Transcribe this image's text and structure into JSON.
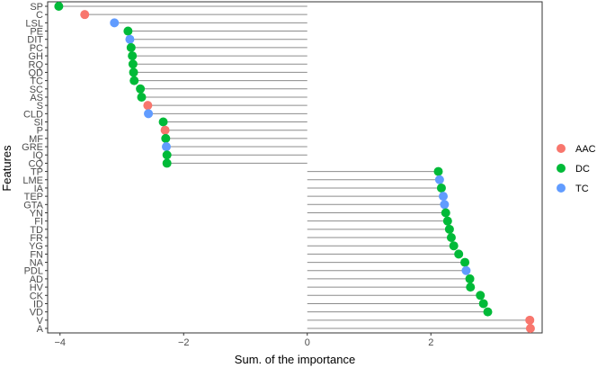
{
  "chart_data": {
    "type": "lollipop",
    "xlabel": "Sum. of the importance",
    "ylabel": "Features",
    "xlim": [
      -4.2,
      3.8
    ],
    "xticks": [
      -4,
      -2,
      0,
      2
    ],
    "xtick_labels": [
      "−4",
      "−2",
      "0",
      "2"
    ],
    "grid": false,
    "legend": {
      "position": "right",
      "entries": [
        {
          "label": "AAC",
          "color": "#F8766D"
        },
        {
          "label": "DC",
          "color": "#00BA38"
        },
        {
          "label": "TC",
          "color": "#619CFF"
        }
      ]
    },
    "points": [
      {
        "feature": "SP",
        "value": -4.02,
        "type": "DC"
      },
      {
        "feature": "C",
        "value": -3.6,
        "type": "AAC"
      },
      {
        "feature": "LSL",
        "value": -3.12,
        "type": "TC"
      },
      {
        "feature": "PE",
        "value": -2.9,
        "type": "DC"
      },
      {
        "feature": "DIT",
        "value": -2.87,
        "type": "TC"
      },
      {
        "feature": "PC",
        "value": -2.85,
        "type": "DC"
      },
      {
        "feature": "GH",
        "value": -2.83,
        "type": "DC"
      },
      {
        "feature": "RQ",
        "value": -2.82,
        "type": "DC"
      },
      {
        "feature": "QD",
        "value": -2.81,
        "type": "DC"
      },
      {
        "feature": "TC",
        "value": -2.8,
        "type": "DC"
      },
      {
        "feature": "SC",
        "value": -2.7,
        "type": "DC"
      },
      {
        "feature": "AS",
        "value": -2.68,
        "type": "DC"
      },
      {
        "feature": "S",
        "value": -2.58,
        "type": "AAC"
      },
      {
        "feature": "CLD",
        "value": -2.57,
        "type": "TC"
      },
      {
        "feature": "SI",
        "value": -2.33,
        "type": "DC"
      },
      {
        "feature": "P",
        "value": -2.3,
        "type": "AAC"
      },
      {
        "feature": "MF",
        "value": -2.29,
        "type": "DC"
      },
      {
        "feature": "GRE",
        "value": -2.28,
        "type": "TC"
      },
      {
        "feature": "IQ",
        "value": -2.27,
        "type": "DC"
      },
      {
        "feature": "CQ",
        "value": -2.27,
        "type": "DC"
      },
      {
        "feature": "TP",
        "value": 2.12,
        "type": "DC"
      },
      {
        "feature": "LME",
        "value": 2.14,
        "type": "TC"
      },
      {
        "feature": "IA",
        "value": 2.17,
        "type": "DC"
      },
      {
        "feature": "TEP",
        "value": 2.2,
        "type": "TC"
      },
      {
        "feature": "GTA",
        "value": 2.22,
        "type": "TC"
      },
      {
        "feature": "YN",
        "value": 2.24,
        "type": "DC"
      },
      {
        "feature": "FI",
        "value": 2.27,
        "type": "DC"
      },
      {
        "feature": "TD",
        "value": 2.3,
        "type": "DC"
      },
      {
        "feature": "FR",
        "value": 2.33,
        "type": "DC"
      },
      {
        "feature": "YG",
        "value": 2.37,
        "type": "DC"
      },
      {
        "feature": "FN",
        "value": 2.45,
        "type": "DC"
      },
      {
        "feature": "NA",
        "value": 2.55,
        "type": "DC"
      },
      {
        "feature": "PDL",
        "value": 2.57,
        "type": "TC"
      },
      {
        "feature": "AD",
        "value": 2.63,
        "type": "DC"
      },
      {
        "feature": "HV",
        "value": 2.64,
        "type": "DC"
      },
      {
        "feature": "CK",
        "value": 2.8,
        "type": "DC"
      },
      {
        "feature": "ID",
        "value": 2.85,
        "type": "DC"
      },
      {
        "feature": "VD",
        "value": 2.92,
        "type": "DC"
      },
      {
        "feature": "V",
        "value": 3.6,
        "type": "AAC"
      },
      {
        "feature": "A",
        "value": 3.61,
        "type": "AAC"
      }
    ]
  }
}
